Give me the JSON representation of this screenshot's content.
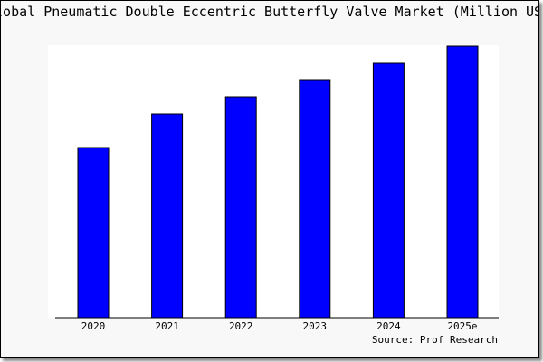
{
  "chart_data": {
    "type": "bar",
    "title": "Global Pneumatic Double Eccentric Butterfly Valve Market (Million USD)",
    "categories": [
      "2020",
      "2021",
      "2022",
      "2023",
      "2024",
      "2025e"
    ],
    "values": [
      188,
      225,
      244,
      263,
      281,
      300
    ],
    "ylim": [
      0,
      300
    ],
    "xlabel": "",
    "ylabel": "",
    "grid": false,
    "bar_color": "#0000ff",
    "source": "Source: Prof Research"
  }
}
